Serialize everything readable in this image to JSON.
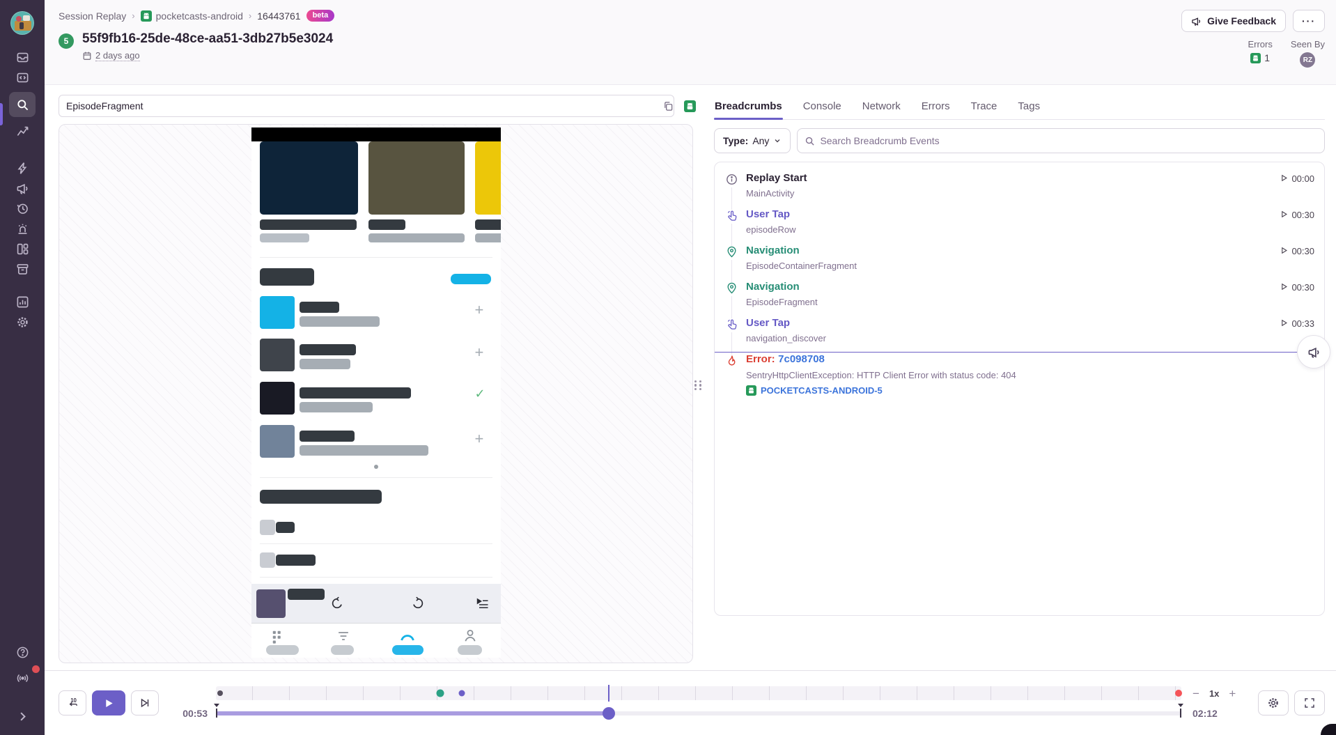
{
  "breadcrumb": {
    "section": "Session Replay",
    "project": "pocketcasts-android",
    "replay_short_id": "16443761",
    "beta": "beta"
  },
  "header": {
    "count_badge": "5",
    "replay_id": "55f9fb16-25de-48ce-aa51-3db27b5e3024",
    "time_ago": "2 days ago",
    "give_feedback_label": "Give Feedback",
    "more_label": "···",
    "errors_label": "Errors",
    "errors_count": "1",
    "seen_by_label": "Seen By",
    "seen_by_user": "RZ"
  },
  "sidebar": {
    "items": [
      "issues",
      "projects",
      "explore",
      "insights",
      "performance",
      "feedback",
      "crons",
      "alerts",
      "dashboards",
      "releases",
      "stats",
      "settings",
      "help",
      "whats-new",
      "collapse"
    ]
  },
  "player": {
    "search_value": "EpisodeFragment"
  },
  "tabs": [
    {
      "label": "Breadcrumbs"
    },
    {
      "label": "Console"
    },
    {
      "label": "Network"
    },
    {
      "label": "Errors"
    },
    {
      "label": "Trace"
    },
    {
      "label": "Tags"
    }
  ],
  "filter": {
    "type_label": "Type:",
    "type_value": "Any",
    "search_placeholder": "Search Breadcrumb Events"
  },
  "events": [
    {
      "title": "Replay Start",
      "subtitle": "MainActivity",
      "time": "00:00"
    },
    {
      "title": "User Tap",
      "subtitle": "episodeRow",
      "time": "00:30"
    },
    {
      "title": "Navigation",
      "subtitle": "EpisodeContainerFragment",
      "time": "00:30"
    },
    {
      "title": "Navigation",
      "subtitle": "EpisodeFragment",
      "time": "00:30"
    },
    {
      "title": "User Tap",
      "subtitle": "navigation_discover",
      "time": "00:33"
    },
    {
      "title": "Error:",
      "error_id": "7c098708",
      "subtitle": "SentryHttpClientException: HTTP Client Error with status code: 404",
      "project": "POCKETCASTS-ANDROID-5"
    }
  ],
  "controls": {
    "current_time": "00:53",
    "total_time": "02:12",
    "speed": "1x"
  },
  "timeline": {
    "current_pct": 40.7,
    "progress_pct": 40.7,
    "markers": [
      {
        "type": "start",
        "pct": 0.4
      },
      {
        "type": "nav",
        "pct": 23.2
      },
      {
        "type": "tap",
        "pct": 25.5
      },
      {
        "type": "error",
        "pct": 99.7
      }
    ]
  },
  "colors": {
    "sidebar": "#382e44",
    "accent": "#6c5fc7",
    "error": "#db3e32",
    "success": "#2ba185",
    "link": "#3c74db",
    "cyan": "#14b2e6",
    "android_green": "#269959"
  }
}
